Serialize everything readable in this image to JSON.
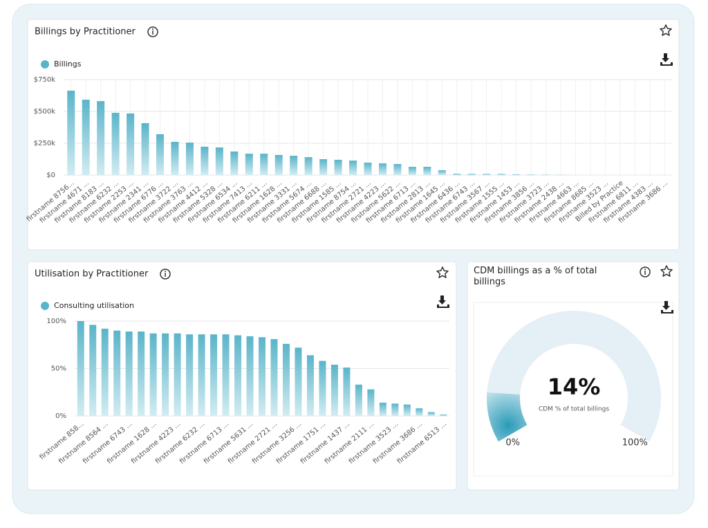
{
  "chart_data": [
    {
      "type": "bar",
      "title": "Billings by Practitioner",
      "categories": [
        "firstname 8756...",
        "firstname 4671 ...",
        "firstname 8183 ...",
        "firstname 6232 ...",
        "firstname 2253 ...",
        "firstname 2341 ...",
        "firstname 6776 ...",
        "firstname 3722 ...",
        "firstname 3763 ...",
        "firstname 4412 ...",
        "firstname 5328 ...",
        "firstname 6534 ...",
        "firstname 7413 ...",
        "firstname 6211 ...",
        "firstname 1628 ...",
        "firstname 3331 ...",
        "firstname 5674 ...",
        "firstname 6688 ...",
        "firstname 1585 ...",
        "firstname 8754 ...",
        "firstname 2721 ...",
        "firstname 4223 ...",
        "firstname 5622 ...",
        "firstname 6713 ...",
        "firstname 2813 ...",
        "firstname 1645 ...",
        "firstname 6436 ...",
        "firstname 6743 ...",
        "firstname 3567 ...",
        "firstname 1555 ...",
        "firstname 1453 ...",
        "firstname 3856 ...",
        "firstname 3723 ...",
        "firstname 2438 ...",
        "firstname 4663 ...",
        "firstname 8685 ...",
        "firstname 3523 ...",
        "Billed by Practice",
        "firstname 6811 ...",
        "firstname 4383 ...",
        "firstname 3686 ..."
      ],
      "series": [
        {
          "name": "Billings",
          "color": "#5ab4c9",
          "values": [
            663000,
            592000,
            581000,
            489000,
            484000,
            408000,
            321000,
            261000,
            255000,
            223000,
            217000,
            185000,
            168000,
            168000,
            158000,
            152000,
            141000,
            125000,
            120000,
            114000,
            98000,
            92000,
            87000,
            65000,
            65000,
            38000,
            11000,
            10000,
            9000,
            9000,
            6000,
            4000,
            3000,
            1000,
            0,
            0,
            0,
            0,
            0,
            0,
            0
          ]
        }
      ],
      "ylim": [
        0,
        750000
      ],
      "yticks": [
        {
          "value": 0,
          "label": "$0"
        },
        {
          "value": 250000,
          "label": "$250k"
        },
        {
          "value": 500000,
          "label": "$500k"
        },
        {
          "value": 750000,
          "label": "$750k"
        }
      ],
      "grid": true
    },
    {
      "type": "bar",
      "title": "Utilisation by Practitioner",
      "categories": [
        "firstname 858...",
        null,
        "firstname 8564 ...",
        null,
        "firstname 6743 ...",
        null,
        "firstname 1628 ...",
        null,
        "firstname 4223 ...",
        null,
        "firstname 6232 ...",
        null,
        "firstname 6713 ...",
        null,
        "firstname 5631 ...",
        null,
        "firstname 2721 ...",
        null,
        "firstname 3256 ...",
        null,
        "firstname 1751 ...",
        null,
        "firstname 1437 ...",
        null,
        "firstname 2111 ...",
        null,
        "firstname 3523 ...",
        null,
        "firstname 3686 ...",
        null,
        "firstname 6513 ..."
      ],
      "series": [
        {
          "name": "Consulting utilisation",
          "color": "#5ab4c9",
          "values": [
            100,
            96,
            92,
            90,
            89,
            89,
            87,
            87,
            87,
            86,
            86,
            86,
            86,
            85,
            84,
            83,
            81,
            76,
            72,
            64,
            58,
            54,
            51,
            33,
            28,
            14,
            13,
            12,
            8,
            4,
            1.5
          ]
        }
      ],
      "ylim": [
        0,
        100
      ],
      "yticks": [
        {
          "value": 0,
          "label": "0%"
        },
        {
          "value": 50,
          "label": "50%"
        },
        {
          "value": 100,
          "label": "100%"
        }
      ],
      "grid": true
    },
    {
      "type": "gauge",
      "title": "CDM billings as a % of total billings",
      "value": 14,
      "value_label": "14%",
      "subtitle": "CDM % of total billings",
      "color": "#2a9bb8",
      "ylim": [
        0,
        100
      ],
      "yticks": [
        {
          "value": 0,
          "label": "0%"
        },
        {
          "value": 100,
          "label": "100%"
        }
      ]
    }
  ]
}
